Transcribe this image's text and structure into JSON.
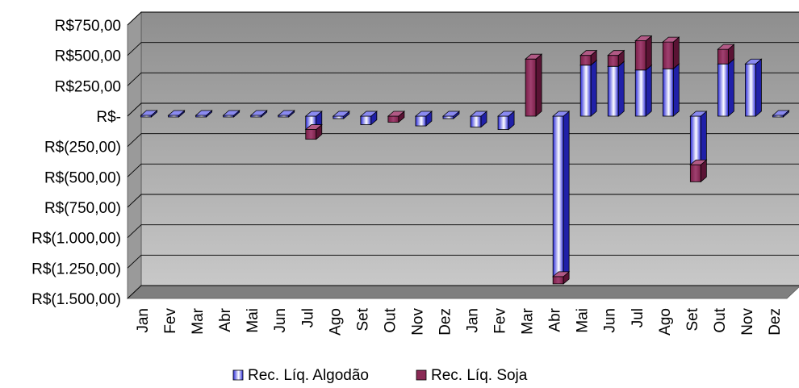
{
  "chart_data": {
    "type": "bar",
    "stacked": true,
    "three_d": true,
    "categories": [
      "Jan",
      "Fev",
      "Mar",
      "Abr",
      "Mai",
      "Jun",
      "Jul",
      "Ago",
      "Set",
      "Out",
      "Nov",
      "Dez",
      "Jan",
      "Fev",
      "Mar",
      "Abr",
      "Mai",
      "Jun",
      "Jul",
      "Ago",
      "Set",
      "Out",
      "Nov",
      "Dez"
    ],
    "series": [
      {
        "name": "Rec. Líq. Algodão",
        "color": "#6a6ae8",
        "values": [
          0,
          0,
          0,
          0,
          0,
          0,
          -110,
          -20,
          -70,
          0,
          -80,
          -20,
          -90,
          -110,
          0,
          -1320,
          420,
          410,
          380,
          390,
          -400,
          430,
          430,
          0
        ]
      },
      {
        "name": "Rec. Líq. Soja",
        "color": "#8a2a55",
        "values": [
          0,
          0,
          0,
          0,
          0,
          0,
          -80,
          0,
          0,
          -50,
          0,
          0,
          0,
          0,
          470,
          -60,
          80,
          90,
          240,
          220,
          -140,
          120,
          0,
          0
        ]
      }
    ],
    "yticks": [
      "R$750,00",
      "R$500,00",
      "R$250,00",
      "R$-",
      "R$(250,00)",
      "R$(500,00)",
      "R$(750,00)",
      "R$(1.000,00)",
      "R$(1.250,00)",
      "R$(1.500,00)"
    ],
    "ytick_values": [
      750,
      500,
      250,
      0,
      -250,
      -500,
      -750,
      -1000,
      -1250,
      -1500
    ],
    "ylim": [
      -1500,
      750
    ],
    "grid": true,
    "legend": "bottom"
  },
  "colors": {
    "wall": "#a9a9a9",
    "floor": "#808080",
    "gridline": "#000000"
  }
}
